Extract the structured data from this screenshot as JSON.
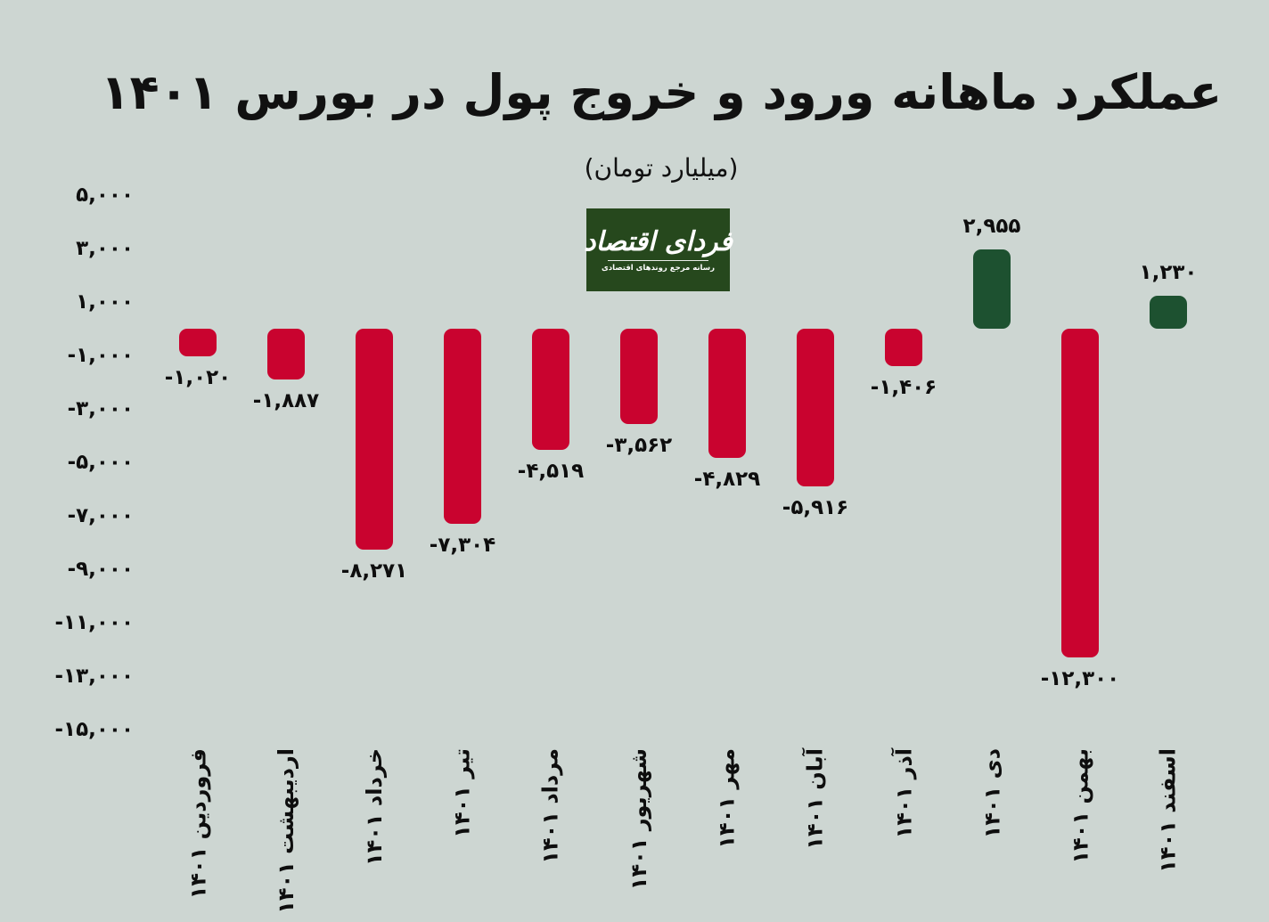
{
  "title": "عملکرد ماهانه ورود و خروج پول در بورس ۱۴۰۱",
  "subtitle": "(میلیارد تومان)",
  "logo": {
    "name": "فردای اقتصاد",
    "tagline": "رسانه مرجع روندهای اقتصادی",
    "bg_color": "#26481d",
    "text_color": "#ffffff"
  },
  "colors": {
    "background": "#cdd6d2",
    "negative_bar": "#c9032f",
    "positive_bar": "#1d5130",
    "text": "#111111"
  },
  "chart_data": {
    "type": "bar",
    "title": "عملکرد ماهانه ورود و خروج پول در بورس ۱۴۰۱",
    "unit_label": "(میلیارد تومان)",
    "categories": [
      "فروردین ۱۴۰۱",
      "اردیبهشت ۱۴۰۱",
      "خرداد ۱۴۰۱",
      "تیر ۱۴۰۱",
      "مرداد ۱۴۰۱",
      "شهریور ۱۴۰۱",
      "مهر ۱۴۰۱",
      "آبان ۱۴۰۱",
      "آذر ۱۴۰۱",
      "دی ۱۴۰۱",
      "بهمن ۱۴۰۱",
      "اسفند ۱۴۰۱"
    ],
    "values": [
      -1020,
      -1887,
      -8271,
      -7304,
      -4519,
      -3562,
      -4829,
      -5916,
      -1406,
      2955,
      -12300,
      1230
    ],
    "value_labels": [
      "-۱,۰۲۰",
      "-۱,۸۸۷",
      "-۸,۲۷۱",
      "-۷,۳۰۴",
      "-۴,۵۱۹",
      "-۳,۵۶۲",
      "-۴,۸۲۹",
      "-۵,۹۱۶",
      "-۱,۴۰۶",
      "۲,۹۵۵",
      "-۱۲,۳۰۰",
      "۱,۲۳۰"
    ],
    "y_tick_values": [
      5000,
      3000,
      1000,
      -1000,
      -3000,
      -5000,
      -7000,
      -9000,
      -11000,
      -13000,
      -15000
    ],
    "y_tick_labels": [
      "۵,۰۰۰",
      "۳,۰۰۰",
      "۱,۰۰۰",
      "-۱,۰۰۰",
      "-۳,۰۰۰",
      "-۵,۰۰۰",
      "-۷,۰۰۰",
      "-۹,۰۰۰",
      "-۱۱,۰۰۰",
      "-۱۳,۰۰۰",
      "-۱۵,۰۰۰"
    ],
    "ylim": [
      -15000,
      5000
    ],
    "grid": false,
    "legend": false
  }
}
